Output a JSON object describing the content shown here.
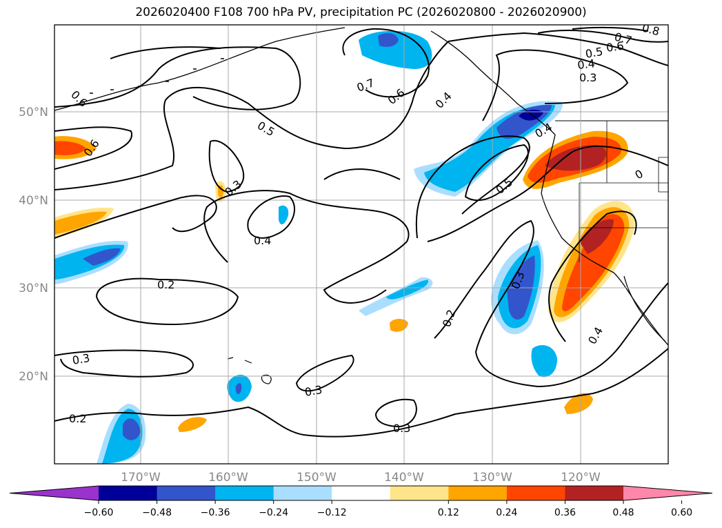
{
  "title": "2026020400 F108 700 hPa PV, precipitation PC (2026020800 - 2026020900)",
  "map": {
    "lon_labels": [
      "170°W",
      "160°W",
      "150°W",
      "140°W",
      "130°W",
      "120°W"
    ],
    "lat_labels": [
      "50°N",
      "40°N",
      "30°N",
      "20°N"
    ],
    "contour_labels": [
      {
        "text": "0.6"
      },
      {
        "text": "0.7"
      },
      {
        "text": "0.6"
      },
      {
        "text": "0.4"
      },
      {
        "text": "0.8"
      },
      {
        "text": "0.7"
      },
      {
        "text": "0.6"
      },
      {
        "text": "0.5"
      },
      {
        "text": "0.4"
      },
      {
        "text": "0.3"
      },
      {
        "text": "0.5"
      },
      {
        "text": "0.6"
      },
      {
        "text": "0.3"
      },
      {
        "text": "0.4"
      },
      {
        "text": "0.5"
      },
      {
        "text": "0.4"
      },
      {
        "text": "0"
      },
      {
        "text": "0.2"
      },
      {
        "text": "0.3"
      },
      {
        "text": "0.2"
      },
      {
        "text": "0.4"
      },
      {
        "text": "0.3"
      },
      {
        "text": "0.3"
      },
      {
        "text": "0.3"
      },
      {
        "text": "0.2"
      }
    ],
    "colors": {
      "neg_extreme": "#9933cc",
      "neg_060": "#000099",
      "neg_048": "#3355cc",
      "neg_036": "#00b4f0",
      "neg_024": "#aadeff",
      "neutral": "#ffffff",
      "pos_012": "#ffe48a",
      "pos_024": "#ffa500",
      "pos_036": "#ff4500",
      "pos_048": "#b22222",
      "pos_extreme": "#ff88aa"
    }
  },
  "colorbar": {
    "tick_labels": [
      "−0.60",
      "−0.48",
      "−0.36",
      "−0.24",
      "−0.12",
      "0.12",
      "0.24",
      "0.36",
      "0.48",
      "0.60"
    ],
    "colors": [
      "#9933cc",
      "#000099",
      "#3355cc",
      "#00b4f0",
      "#aadeff",
      "#ffffff",
      "#ffe48a",
      "#ffa500",
      "#ff4500",
      "#b22222",
      "#ff88aa"
    ]
  }
}
